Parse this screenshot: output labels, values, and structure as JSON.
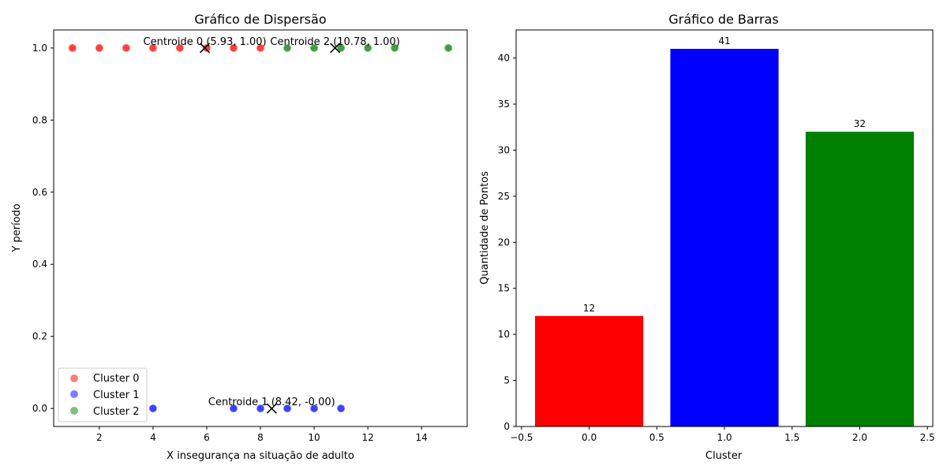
{
  "chart_data": [
    {
      "type": "scatter",
      "title": "Gráfico de Dispersão",
      "xlabel": "X insegurança na situação de adulto",
      "ylabel": "Y período",
      "xlim": [
        0.3,
        15.7
      ],
      "ylim": [
        -0.05,
        1.05
      ],
      "xticks": [
        2,
        4,
        6,
        8,
        10,
        12,
        14
      ],
      "yticks": [
        0.0,
        0.2,
        0.4,
        0.6,
        0.8,
        1.0
      ],
      "legend_position": "lower-left",
      "series": [
        {
          "name": "Cluster 0",
          "color": "#ff0000",
          "x": [
            1,
            2,
            3,
            4,
            5,
            6,
            7,
            8
          ],
          "y": [
            1,
            1,
            1,
            1,
            1,
            1,
            1,
            1
          ]
        },
        {
          "name": "Cluster 1",
          "color": "#0000ff",
          "x": [
            4,
            7,
            8,
            9,
            10,
            11
          ],
          "y": [
            0,
            0,
            0,
            0,
            0,
            0
          ]
        },
        {
          "name": "Cluster 2",
          "color": "#008000",
          "x": [
            9,
            10,
            11,
            12,
            13,
            15
          ],
          "y": [
            1,
            1,
            1,
            1,
            1,
            1
          ]
        }
      ],
      "centroids": [
        {
          "label": "Centroide 0 (5.93, 1.00)",
          "x": 5.93,
          "y": 1.0
        },
        {
          "label": "Centroide 1 (8.42, -0.00)",
          "x": 8.42,
          "y": 0.0
        },
        {
          "label": "Centroide 2 (10.78, 1.00)",
          "x": 10.78,
          "y": 1.0
        }
      ]
    },
    {
      "type": "bar",
      "title": "Gráfico de Barras",
      "xlabel": "Cluster",
      "ylabel": "Quantidade de Pontos",
      "xlim": [
        -0.54,
        2.54
      ],
      "ylim": [
        0,
        43.05
      ],
      "xticks": [
        "−0.5",
        "0.0",
        "0.5",
        "1.0",
        "1.5",
        "2.0",
        "2.5"
      ],
      "xtick_values": [
        -0.5,
        0.0,
        0.5,
        1.0,
        1.5,
        2.0,
        2.5
      ],
      "yticks": [
        0,
        5,
        10,
        15,
        20,
        25,
        30,
        35,
        40
      ],
      "categories": [
        0,
        1,
        2
      ],
      "values": [
        12,
        41,
        32
      ],
      "colors": [
        "#ff0000",
        "#0000ff",
        "#008000"
      ]
    }
  ]
}
